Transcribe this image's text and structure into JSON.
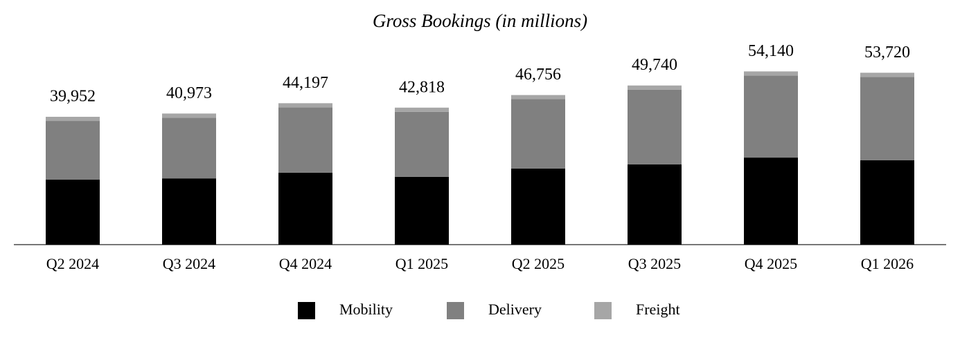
{
  "chart_data": {
    "type": "stacked_bar",
    "title": "Gross Bookings (in millions)",
    "categories": [
      "Q2 2024",
      "Q3 2024",
      "Q4 2024",
      "Q1 2025",
      "Q2 2025",
      "Q3 2025",
      "Q4 2025",
      "Q1 2026"
    ],
    "series": [
      {
        "name": "Mobility",
        "color": "#000000",
        "values": [
          20300,
          20700,
          22500,
          21200,
          23800,
          25100,
          27200,
          26400
        ]
      },
      {
        "name": "Delivery",
        "color": "#808080",
        "values": [
          18352,
          18973,
          20397,
          20318,
          21656,
          23340,
          25640,
          26020
        ]
      },
      {
        "name": "Freight",
        "color": "#a6a6a6",
        "values": [
          1300,
          1300,
          1300,
          1300,
          1300,
          1300,
          1300,
          1300
        ]
      }
    ],
    "totals": {
      "values": [
        39952,
        40973,
        44197,
        42818,
        46756,
        49740,
        54140,
        53720
      ],
      "value_labels": [
        "39,952",
        "40,973",
        "44,197",
        "42,818",
        "46,756",
        "49,740",
        "54,140",
        "53,720"
      ]
    },
    "ylim": [
      0,
      60000
    ],
    "legend": "bottom"
  }
}
